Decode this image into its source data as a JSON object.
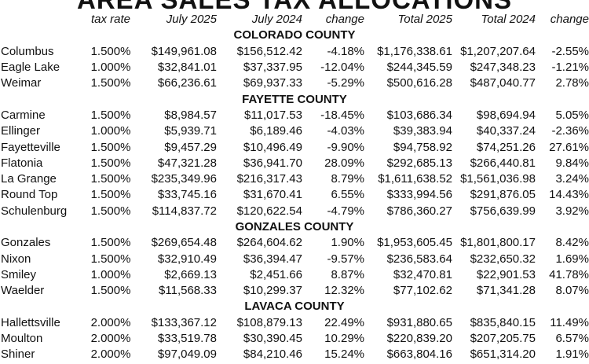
{
  "title": "AREA SALES TAX ALLOCATIONS",
  "headers": [
    "",
    "tax rate",
    "July 2025",
    "July 2024",
    "change",
    "Total 2025",
    "Total 2024",
    "change"
  ],
  "groups": [
    {
      "county": "COLORADO COUNTY",
      "rows": [
        [
          "Columbus",
          "1.500%",
          "$149,961.08",
          "$156,512.42",
          "-4.18%",
          "$1,176,338.61",
          "$1,207,207.64",
          "-2.55%"
        ],
        [
          "Eagle Lake",
          "1.000%",
          "$32,841.01",
          "$37,337.95",
          "-12.04%",
          "$244,345.59",
          "$247,348.23",
          "-1.21%"
        ],
        [
          "Weimar",
          "1.500%",
          "$66,236.61",
          "$69,937.33",
          "-5.29%",
          "$500,616.28",
          "$487,040.77",
          "2.78%"
        ]
      ]
    },
    {
      "county": "FAYETTE COUNTY",
      "rows": [
        [
          "Carmine",
          "1.500%",
          "$8,984.57",
          "$11,017.53",
          "-18.45%",
          "$103,686.34",
          "$98,694.94",
          "5.05%"
        ],
        [
          "Ellinger",
          "1.000%",
          "$5,939.71",
          "$6,189.46",
          "-4.03%",
          "$39,383.94",
          "$40,337.24",
          "-2.36%"
        ],
        [
          "Fayetteville",
          "1.500%",
          "$9,457.29",
          "$10,496.49",
          "-9.90%",
          "$94,758.92",
          "$74,251.26",
          "27.61%"
        ],
        [
          "Flatonia",
          "1.500%",
          "$47,321.28",
          "$36,941.70",
          "28.09%",
          "$292,685.13",
          "$266,440.81",
          "9.84%"
        ],
        [
          "La Grange",
          "1.500%",
          "$235,349.96",
          "$216,317.43",
          "8.79%",
          "$1,611,638.52",
          "$1,561,036.98",
          "3.24%"
        ],
        [
          "Round Top",
          "1.500%",
          "$33,745.16",
          "$31,670.41",
          "6.55%",
          "$333,994.56",
          "$291,876.05",
          "14.43%"
        ],
        [
          "Schulenburg",
          "1.500%",
          "$114,837.72",
          "$120,622.54",
          "-4.79%",
          "$786,360.27",
          "$756,639.99",
          "3.92%"
        ]
      ]
    },
    {
      "county": "GONZALES COUNTY",
      "rows": [
        [
          "Gonzales",
          "1.500%",
          "$269,654.48",
          "$264,604.62",
          "1.90%",
          "$1,953,605.45",
          "$1,801,800.17",
          "8.42%"
        ],
        [
          "Nixon",
          "1.500%",
          "$32,910.49",
          "$36,394.47",
          "-9.57%",
          "$236,583.64",
          "$232,650.32",
          "1.69%"
        ],
        [
          "Smiley",
          "1.000%",
          "$2,669.13",
          "$2,451.66",
          "8.87%",
          "$32,470.81",
          "$22,901.53",
          "41.78%"
        ],
        [
          "Waelder",
          "1.500%",
          "$11,568.33",
          "$10,299.37",
          "12.32%",
          "$77,102.62",
          "$71,341.28",
          "8.07%"
        ]
      ]
    },
    {
      "county": "LAVACA COUNTY",
      "rows": [
        [
          "Hallettsville",
          "2.000%",
          "$133,367.12",
          "$108,879.13",
          "22.49%",
          "$931,880.65",
          "$835,840.15",
          "11.49%"
        ],
        [
          "Moulton",
          "2.000%",
          "$33,519.78",
          "$30,390.45",
          "10.29%",
          "$220,839.20",
          "$207,205.75",
          "6.57%"
        ],
        [
          "Shiner",
          "2.000%",
          "$97,049.09",
          "$84,210.46",
          "15.24%",
          "$663,804.16",
          "$651,314.20",
          "1.91%"
        ]
      ]
    }
  ]
}
